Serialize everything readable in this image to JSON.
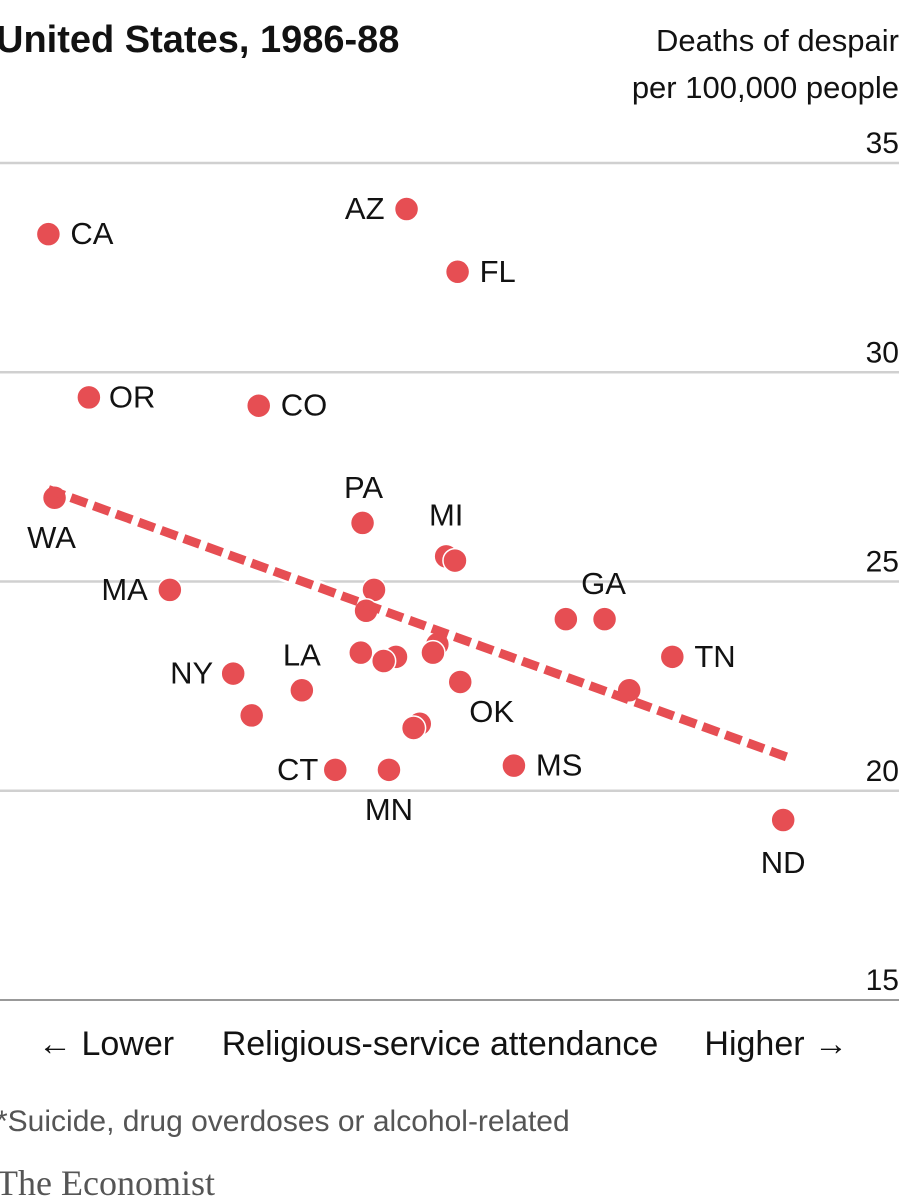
{
  "chart_data": {
    "type": "scatter",
    "title": "United States, 1986-88",
    "ylabel": [
      "Deaths of despair",
      "per 100,000 people"
    ],
    "ylim": [
      15,
      35
    ],
    "yticks": [
      "35",
      "30",
      "25",
      "20",
      "15"
    ],
    "x_axis": {
      "left_label": "← Lower",
      "center_label": "Religious-service attendance",
      "right_label": "Higher →"
    },
    "xlim": [
      0,
      1
    ],
    "grid": true,
    "color": "#e64e53",
    "points": [
      {
        "label": "CA",
        "x": 0.055,
        "y": 33.3
      },
      {
        "label": "AZ",
        "x": 0.462,
        "y": 33.9
      },
      {
        "label": "FL",
        "x": 0.52,
        "y": 32.4
      },
      {
        "label": "OR",
        "x": 0.101,
        "y": 29.4
      },
      {
        "label": "CO",
        "x": 0.294,
        "y": 29.2
      },
      {
        "label": "WA",
        "x": 0.062,
        "y": 27.0
      },
      {
        "label": "PA",
        "x": 0.412,
        "y": 26.4
      },
      {
        "label": "MI",
        "x": 0.507,
        "y": 25.6
      },
      {
        "label": "",
        "x": 0.517,
        "y": 25.5
      },
      {
        "label": "MA",
        "x": 0.193,
        "y": 24.8
      },
      {
        "label": "",
        "x": 0.425,
        "y": 24.8
      },
      {
        "label": "",
        "x": 0.416,
        "y": 24.3
      },
      {
        "label": "GA",
        "x": 0.687,
        "y": 24.1
      },
      {
        "label": "",
        "x": 0.643,
        "y": 24.1
      },
      {
        "label": "",
        "x": 0.497,
        "y": 23.5
      },
      {
        "label": "",
        "x": 0.492,
        "y": 23.3
      },
      {
        "label": "",
        "x": 0.41,
        "y": 23.3
      },
      {
        "label": "",
        "x": 0.45,
        "y": 23.2
      },
      {
        "label": "",
        "x": 0.436,
        "y": 23.1
      },
      {
        "label": "TN",
        "x": 0.764,
        "y": 23.2
      },
      {
        "label": "LA",
        "x": 0.343,
        "y": 22.4
      },
      {
        "label": "NY",
        "x": 0.265,
        "y": 22.8
      },
      {
        "label": "OK",
        "x": 0.523,
        "y": 22.6
      },
      {
        "label": "",
        "x": 0.715,
        "y": 22.4
      },
      {
        "label": "",
        "x": 0.286,
        "y": 21.8
      },
      {
        "label": "",
        "x": 0.477,
        "y": 21.6
      },
      {
        "label": "",
        "x": 0.47,
        "y": 21.5
      },
      {
        "label": "CT",
        "x": 0.381,
        "y": 20.5
      },
      {
        "label": "MN",
        "x": 0.442,
        "y": 20.5
      },
      {
        "label": "MS",
        "x": 0.584,
        "y": 20.6
      },
      {
        "label": "ND",
        "x": 0.89,
        "y": 19.3
      }
    ],
    "trendline": {
      "x": [
        0.055,
        0.895
      ],
      "y": [
        27.2,
        20.8
      ],
      "style": "dashed"
    }
  },
  "footnote": "*Suicide, drug overdoses or alcohol-related",
  "source": "The Economist"
}
